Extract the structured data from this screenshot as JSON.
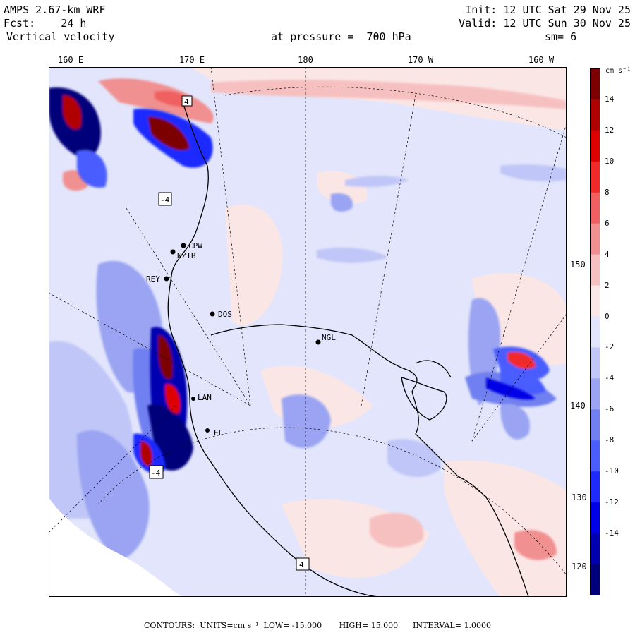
{
  "header": {
    "model": "AMPS 2.67-km WRF",
    "fcst_label": "Fcst:",
    "fcst_value": "24 h",
    "field": "Vertical velocity",
    "level": "at pressure =  700 hPa",
    "init": "Init: 12 UTC Sat 29 Nov 25",
    "valid": "Valid: 12 UTC Sun 30 Nov 25",
    "smooth": "sm= 6"
  },
  "longitude_labels": [
    "160 E",
    "170 E",
    "180",
    "170 W",
    "160 W"
  ],
  "latitude_labels": [
    "150 W",
    "140 W",
    "130 W",
    "120 W"
  ],
  "stations": [
    "CPW",
    "NZTB",
    "REY",
    "DOS",
    "NGL",
    "LAN",
    "EL"
  ],
  "box_markers": [
    "4",
    "-4",
    "-4",
    "4"
  ],
  "colorbar": {
    "units": "cm s⁻¹",
    "ticks": [
      "14",
      "12",
      "10",
      "8",
      "6",
      "4",
      "2",
      "0",
      "-2",
      "-4",
      "-6",
      "-8",
      "-10",
      "-12",
      "-14"
    ],
    "colors_low_to_high": [
      "#00007a",
      "#0000b0",
      "#0000e6",
      "#1e2bff",
      "#4a5dff",
      "#7180f0",
      "#9aa4f2",
      "#c0c6f7",
      "#e2e5fb",
      "#fbe6e6",
      "#f6c0c0",
      "#f19090",
      "#f06060",
      "#f02a2a",
      "#dd0000",
      "#b00000",
      "#7d0000"
    ]
  },
  "footer": {
    "label": "CONTOURS:",
    "units": "UNITS=cm s⁻¹",
    "low": "LOW= -15.000",
    "high": "HIGH= 15.000",
    "interval": "INTERVAL= 1.0000"
  }
}
